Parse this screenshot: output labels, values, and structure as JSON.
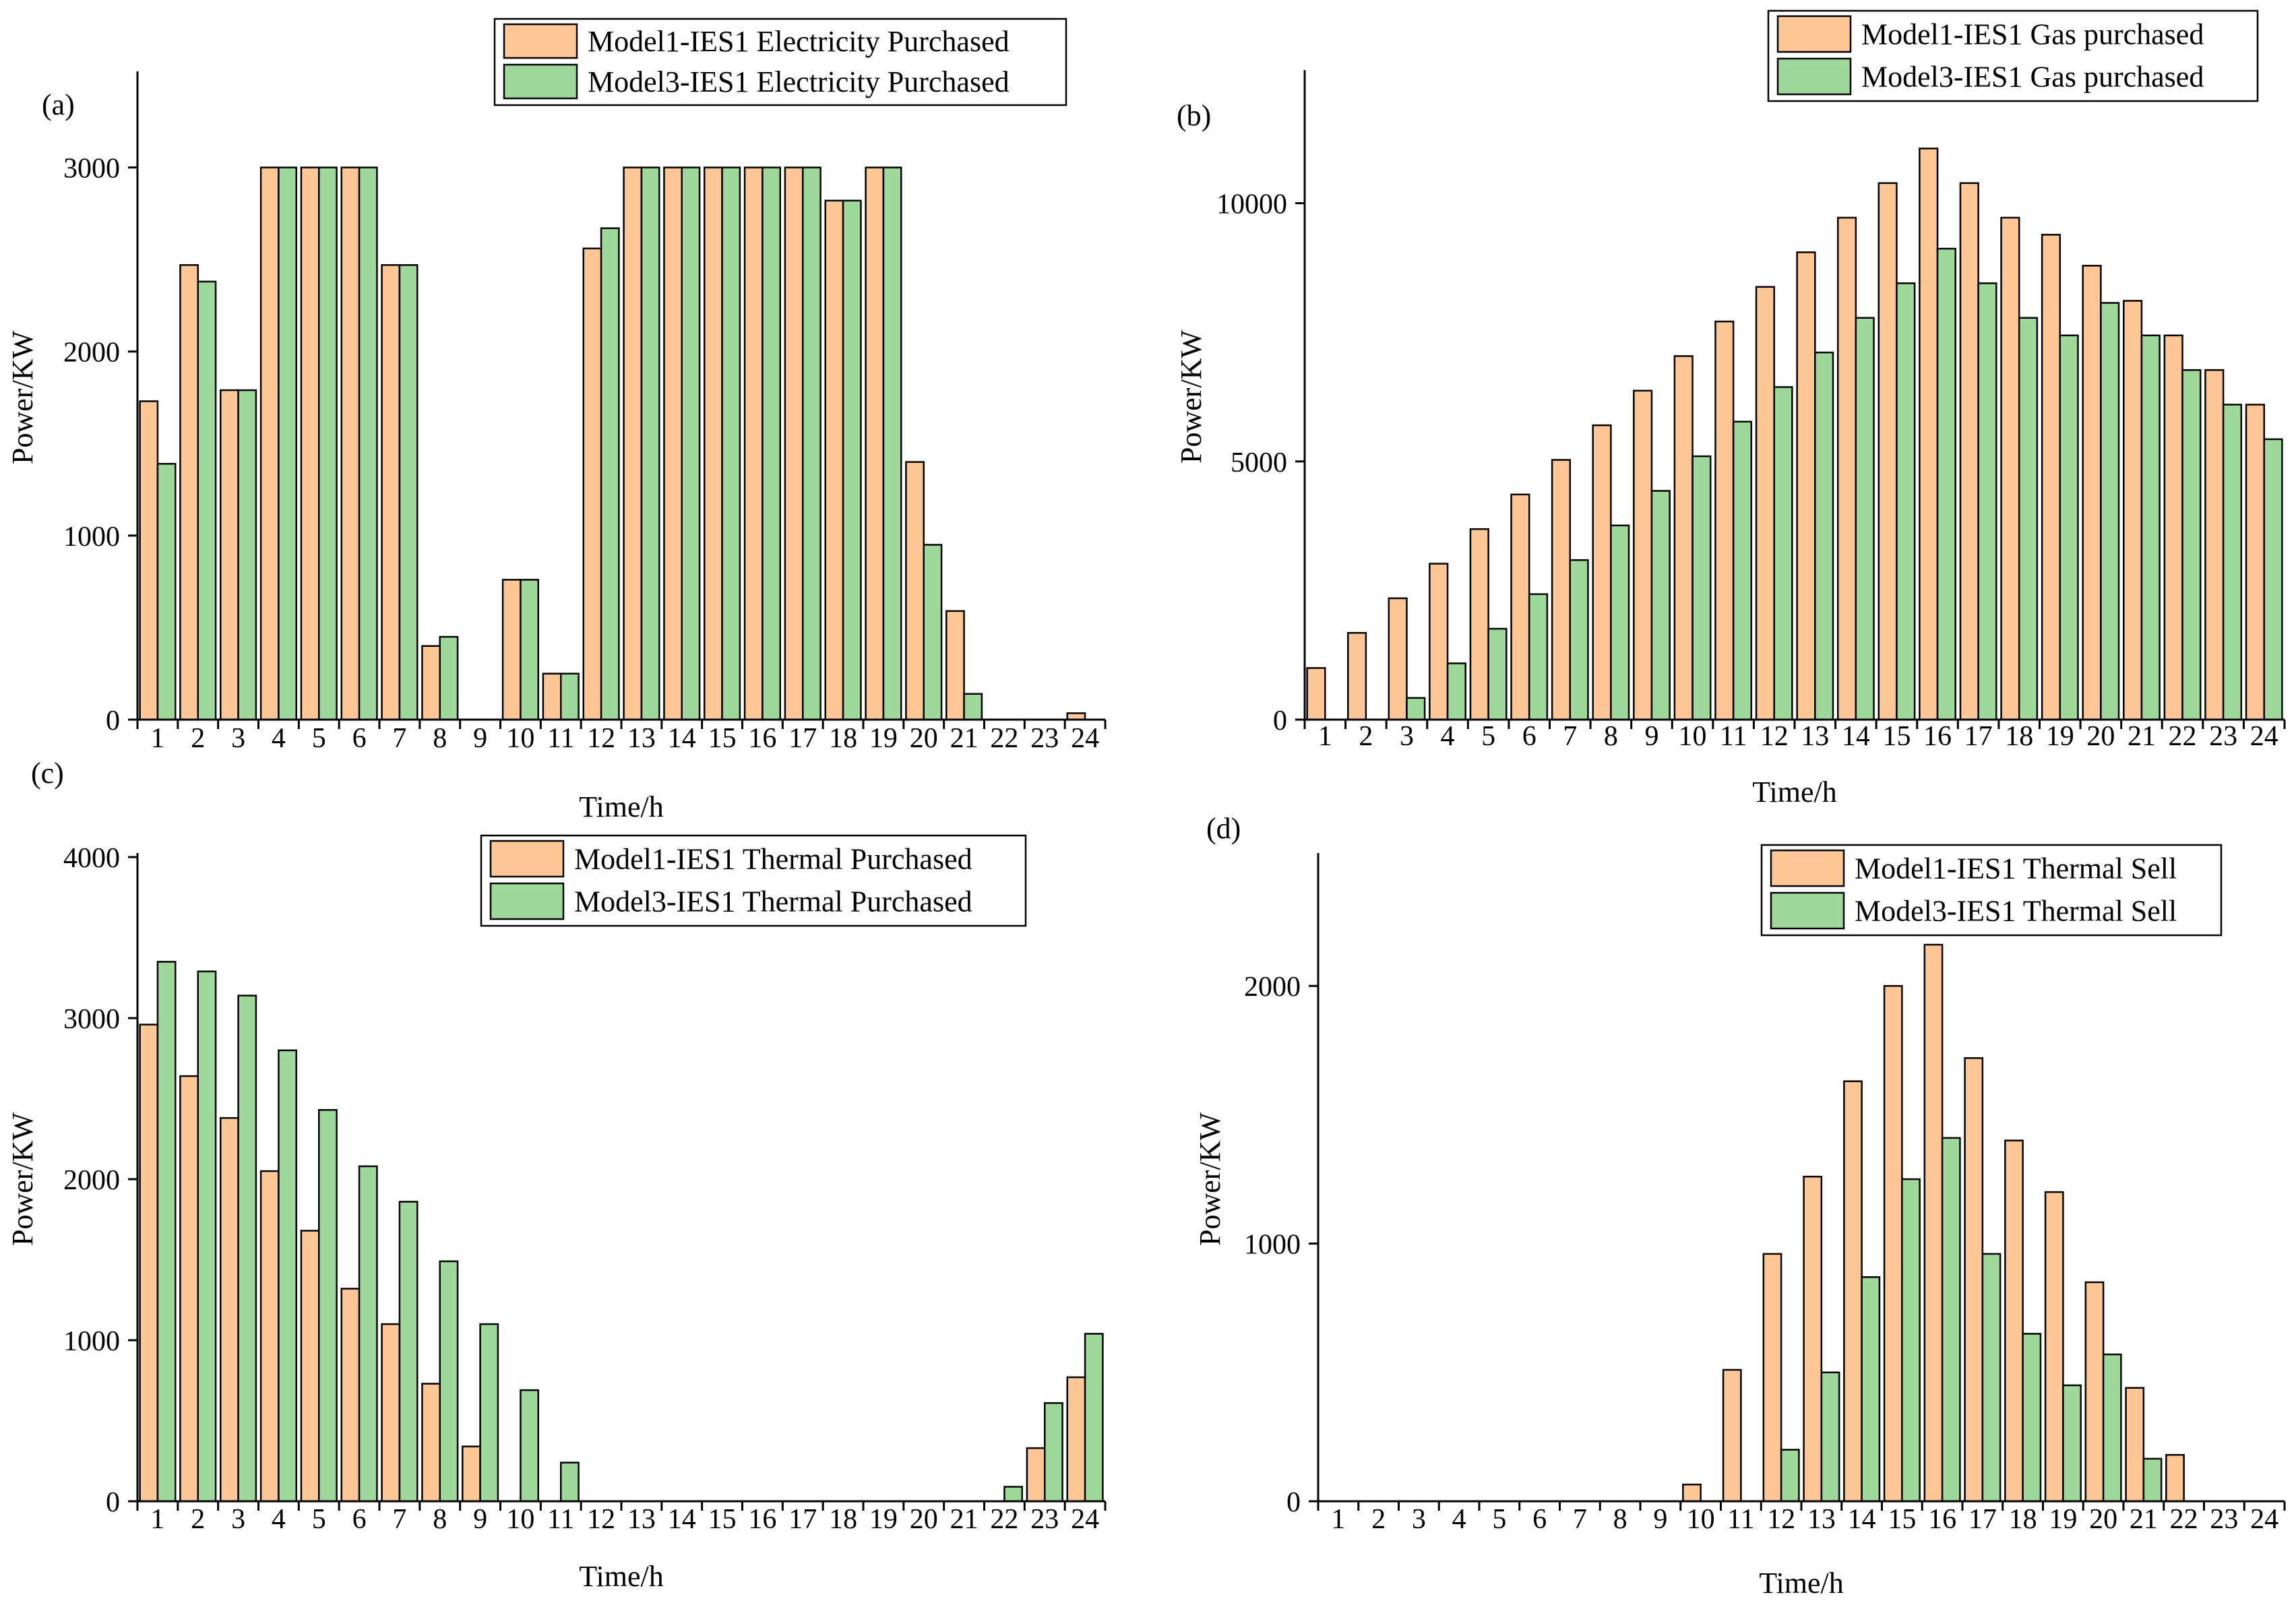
{
  "colors": {
    "series1": "#FDC795",
    "series2": "#9ED89B",
    "stroke": "#000000"
  },
  "chart_data": [
    {
      "panel_label": "(a)",
      "type": "bar",
      "title": "",
      "xlabel": "Time/h",
      "ylabel": "Power/KW",
      "ylim": [
        0,
        3500
      ],
      "yticks": [
        0,
        1000,
        2000,
        3000
      ],
      "categories": [
        "1",
        "2",
        "3",
        "4",
        "5",
        "6",
        "7",
        "8",
        "9",
        "10",
        "11",
        "12",
        "13",
        "14",
        "15",
        "16",
        "17",
        "18",
        "19",
        "20",
        "21",
        "22",
        "23",
        "24"
      ],
      "series": [
        {
          "name": "Model1-IES1 Electricity Purchased",
          "values": [
            1730,
            2470,
            1790,
            3000,
            3000,
            3000,
            2470,
            400,
            0,
            760,
            250,
            2560,
            3000,
            3000,
            3000,
            3000,
            3000,
            2820,
            3000,
            1400,
            590,
            0,
            0,
            35
          ]
        },
        {
          "name": "Model3-IES1 Electricity Purchased",
          "values": [
            1390,
            2380,
            1790,
            3000,
            3000,
            3000,
            2470,
            450,
            0,
            760,
            250,
            2670,
            3000,
            3000,
            3000,
            3000,
            3000,
            2820,
            3000,
            950,
            140,
            0,
            0,
            0
          ]
        }
      ],
      "legend_position": "top-center"
    },
    {
      "panel_label": "(b)",
      "type": "bar",
      "title": "",
      "xlabel": "Time/h",
      "ylabel": "Power/KW",
      "ylim": [
        0,
        12500
      ],
      "yticks": [
        0,
        5000,
        10000
      ],
      "categories": [
        "1",
        "2",
        "3",
        "4",
        "5",
        "6",
        "7",
        "8",
        "9",
        "10",
        "11",
        "12",
        "13",
        "14",
        "15",
        "16",
        "17",
        "18",
        "19",
        "20",
        "21",
        "22",
        "23",
        "24"
      ],
      "series": [
        {
          "name": "Model1-IES1 Gas purchased",
          "values": [
            1000,
            1680,
            2350,
            3020,
            3690,
            4360,
            5030,
            5700,
            6370,
            7040,
            7710,
            8380,
            9050,
            9720,
            10390,
            11060,
            10390,
            9720,
            9390,
            8790,
            8110,
            7440,
            6770,
            6100
          ]
        },
        {
          "name": "Model3-IES1 Gas purchased",
          "values": [
            0,
            0,
            420,
            1090,
            1760,
            2430,
            3090,
            3760,
            4430,
            5100,
            5770,
            6440,
            7110,
            7780,
            8450,
            9120,
            8450,
            7780,
            7440,
            8070,
            7440,
            6770,
            6100,
            5430
          ]
        }
      ],
      "legend_position": "top-right"
    },
    {
      "panel_label": "(c)",
      "type": "bar",
      "title": "",
      "xlabel": "Time/h",
      "ylabel": "Power/KW",
      "ylim": [
        0,
        4000
      ],
      "yticks": [
        0,
        1000,
        2000,
        3000,
        4000
      ],
      "categories": [
        "1",
        "2",
        "3",
        "4",
        "5",
        "6",
        "7",
        "8",
        "9",
        "10",
        "11",
        "12",
        "13",
        "14",
        "15",
        "16",
        "17",
        "18",
        "19",
        "20",
        "21",
        "22",
        "23",
        "24"
      ],
      "series": [
        {
          "name": "Model1-IES1 Thermal Purchased",
          "values": [
            2960,
            2640,
            2380,
            2050,
            1680,
            1320,
            1100,
            730,
            340,
            0,
            0,
            0,
            0,
            0,
            0,
            0,
            0,
            0,
            0,
            0,
            0,
            0,
            330,
            770
          ]
        },
        {
          "name": "Model3-IES1 Thermal Purchased",
          "values": [
            3350,
            3290,
            3140,
            2800,
            2430,
            2080,
            1860,
            1490,
            1100,
            690,
            240,
            0,
            0,
            0,
            0,
            0,
            0,
            0,
            0,
            0,
            0,
            90,
            610,
            1040
          ]
        }
      ],
      "legend_position": "top-center"
    },
    {
      "panel_label": "(d)",
      "type": "bar",
      "title": "",
      "xlabel": "Time/h",
      "ylabel": "Power/KW",
      "ylim": [
        0,
        2500
      ],
      "yticks": [
        0,
        1000,
        2000
      ],
      "categories": [
        "1",
        "2",
        "3",
        "4",
        "5",
        "6",
        "7",
        "8",
        "9",
        "10",
        "11",
        "12",
        "13",
        "14",
        "15",
        "16",
        "17",
        "18",
        "19",
        "20",
        "21",
        "22",
        "23",
        "24"
      ],
      "series": [
        {
          "name": "Model1-IES1 Thermal Sell",
          "values": [
            0,
            0,
            0,
            0,
            0,
            0,
            0,
            0,
            0,
            65,
            510,
            960,
            1260,
            1630,
            2000,
            2160,
            1720,
            1400,
            1200,
            850,
            440,
            180,
            0,
            0
          ]
        },
        {
          "name": "Model3-IES1 Thermal Sell",
          "values": [
            0,
            0,
            0,
            0,
            0,
            0,
            0,
            0,
            0,
            0,
            0,
            200,
            500,
            870,
            1250,
            1410,
            960,
            650,
            450,
            570,
            165,
            0,
            0,
            0
          ]
        }
      ],
      "legend_position": "top-right"
    }
  ]
}
